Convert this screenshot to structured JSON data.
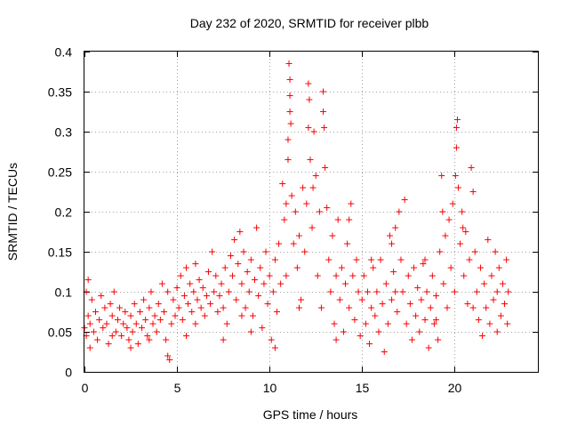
{
  "chart_data": {
    "type": "scatter",
    "title": "Day 232 of 2020, SRMTID for receiver plbb",
    "xlabel": "GPS time / hours",
    "ylabel": "SRMTID / TECUs",
    "xlim": [
      0,
      24.5
    ],
    "ylim": [
      0,
      0.4
    ],
    "x_ticks": [
      0,
      5,
      10,
      15,
      20
    ],
    "x_tick_labels": [
      "0",
      "5",
      "10",
      "15",
      "20"
    ],
    "y_ticks": [
      0,
      0.05,
      0.1,
      0.15,
      0.2,
      0.25,
      0.3,
      0.35,
      0.4
    ],
    "y_tick_labels": [
      "0",
      "0.05",
      "0.1",
      "0.15",
      "0.2",
      "0.25",
      "0.3",
      "0.35",
      "0.4"
    ],
    "grid": true,
    "marker": "+",
    "color": "#ff0000",
    "series": [
      {
        "name": "SRMTID",
        "points": [
          [
            0.0,
            0.055
          ],
          [
            0.1,
            0.1
          ],
          [
            0.1,
            0.045
          ],
          [
            0.2,
            0.115
          ],
          [
            0.2,
            0.07
          ],
          [
            0.3,
            0.06
          ],
          [
            0.4,
            0.09
          ],
          [
            0.5,
            0.05
          ],
          [
            0.6,
            0.075
          ],
          [
            0.7,
            0.04
          ],
          [
            0.8,
            0.065
          ],
          [
            0.9,
            0.095
          ],
          [
            1.0,
            0.055
          ],
          [
            1.1,
            0.08
          ],
          [
            1.2,
            0.06
          ],
          [
            1.3,
            0.035
          ],
          [
            1.4,
            0.085
          ],
          [
            1.5,
            0.07
          ],
          [
            1.6,
            0.1
          ],
          [
            1.7,
            0.05
          ],
          [
            1.8,
            0.065
          ],
          [
            1.9,
            0.08
          ],
          [
            2.0,
            0.045
          ],
          [
            2.1,
            0.06
          ],
          [
            2.2,
            0.075
          ],
          [
            2.3,
            0.055
          ],
          [
            2.4,
            0.04
          ],
          [
            2.5,
            0.07
          ],
          [
            2.6,
            0.05
          ],
          [
            2.7,
            0.085
          ],
          [
            2.8,
            0.06
          ],
          [
            2.9,
            0.035
          ],
          [
            3.0,
            0.075
          ],
          [
            3.1,
            0.055
          ],
          [
            3.2,
            0.09
          ],
          [
            3.3,
            0.065
          ],
          [
            3.4,
            0.045
          ],
          [
            3.5,
            0.08
          ],
          [
            3.6,
            0.1
          ],
          [
            3.7,
            0.06
          ],
          [
            3.8,
            0.07
          ],
          [
            3.9,
            0.05
          ],
          [
            4.0,
            0.085
          ],
          [
            4.1,
            0.065
          ],
          [
            4.2,
            0.11
          ],
          [
            4.3,
            0.075
          ],
          [
            4.4,
            0.04
          ],
          [
            4.5,
            0.02
          ],
          [
            4.6,
            0.015
          ],
          [
            4.7,
            0.06
          ],
          [
            4.8,
            0.09
          ],
          [
            4.9,
            0.07
          ],
          [
            5.0,
            0.105
          ],
          [
            5.1,
            0.08
          ],
          [
            5.2,
            0.12
          ],
          [
            5.3,
            0.065
          ],
          [
            5.4,
            0.095
          ],
          [
            5.5,
            0.13
          ],
          [
            5.6,
            0.085
          ],
          [
            5.7,
            0.11
          ],
          [
            5.8,
            0.075
          ],
          [
            5.9,
            0.1
          ],
          [
            6.0,
            0.135
          ],
          [
            6.1,
            0.09
          ],
          [
            6.2,
            0.115
          ],
          [
            6.3,
            0.08
          ],
          [
            6.4,
            0.105
          ],
          [
            6.5,
            0.07
          ],
          [
            6.6,
            0.095
          ],
          [
            6.7,
            0.125
          ],
          [
            6.8,
            0.085
          ],
          [
            6.9,
            0.15
          ],
          [
            7.0,
            0.1
          ],
          [
            7.1,
            0.12
          ],
          [
            7.2,
            0.075
          ],
          [
            7.3,
            0.095
          ],
          [
            7.4,
            0.11
          ],
          [
            7.5,
            0.08
          ],
          [
            7.6,
            0.13
          ],
          [
            7.7,
            0.06
          ],
          [
            7.8,
            0.1
          ],
          [
            7.9,
            0.145
          ],
          [
            8.0,
            0.12
          ],
          [
            8.1,
            0.165
          ],
          [
            8.2,
            0.09
          ],
          [
            8.3,
            0.135
          ],
          [
            8.4,
            0.175
          ],
          [
            8.5,
            0.11
          ],
          [
            8.6,
            0.15
          ],
          [
            8.7,
            0.08
          ],
          [
            8.8,
            0.125
          ],
          [
            8.9,
            0.1
          ],
          [
            9.0,
            0.14
          ],
          [
            9.1,
            0.07
          ],
          [
            9.2,
            0.115
          ],
          [
            9.3,
            0.18
          ],
          [
            9.4,
            0.095
          ],
          [
            9.5,
            0.13
          ],
          [
            9.6,
            0.055
          ],
          [
            9.7,
            0.11
          ],
          [
            9.8,
            0.15
          ],
          [
            9.9,
            0.085
          ],
          [
            10.0,
            0.12
          ],
          [
            10.1,
            0.04
          ],
          [
            10.2,
            0.1
          ],
          [
            10.3,
            0.14
          ],
          [
            10.4,
            0.075
          ],
          [
            10.5,
            0.16
          ],
          [
            10.6,
            0.11
          ],
          [
            10.7,
            0.235
          ],
          [
            10.8,
            0.19
          ],
          [
            10.9,
            0.12
          ],
          [
            11.0,
            0.265
          ],
          [
            11.0,
            0.29
          ],
          [
            11.05,
            0.385
          ],
          [
            11.1,
            0.365
          ],
          [
            11.1,
            0.345
          ],
          [
            11.1,
            0.325
          ],
          [
            11.15,
            0.31
          ],
          [
            11.2,
            0.22
          ],
          [
            11.3,
            0.16
          ],
          [
            11.4,
            0.2
          ],
          [
            11.5,
            0.13
          ],
          [
            11.6,
            0.17
          ],
          [
            11.7,
            0.09
          ],
          [
            11.8,
            0.23
          ],
          [
            11.9,
            0.15
          ],
          [
            12.0,
            0.21
          ],
          [
            12.1,
            0.36
          ],
          [
            12.15,
            0.34
          ],
          [
            12.1,
            0.305
          ],
          [
            12.2,
            0.265
          ],
          [
            12.3,
            0.18
          ],
          [
            12.4,
            0.3
          ],
          [
            12.5,
            0.245
          ],
          [
            12.6,
            0.12
          ],
          [
            12.7,
            0.2
          ],
          [
            12.8,
            0.08
          ],
          [
            12.9,
            0.35
          ],
          [
            12.9,
            0.325
          ],
          [
            12.95,
            0.305
          ],
          [
            13.0,
            0.255
          ],
          [
            13.1,
            0.205
          ],
          [
            13.2,
            0.14
          ],
          [
            13.3,
            0.1
          ],
          [
            13.4,
            0.17
          ],
          [
            13.5,
            0.06
          ],
          [
            13.6,
            0.12
          ],
          [
            13.7,
            0.19
          ],
          [
            13.8,
            0.09
          ],
          [
            13.9,
            0.13
          ],
          [
            14.0,
            0.05
          ],
          [
            14.1,
            0.11
          ],
          [
            14.2,
            0.16
          ],
          [
            14.3,
            0.08
          ],
          [
            14.4,
            0.21
          ],
          [
            14.5,
            0.12
          ],
          [
            14.6,
            0.065
          ],
          [
            14.7,
            0.14
          ],
          [
            14.8,
            0.1
          ],
          [
            14.9,
            0.045
          ],
          [
            15.0,
            0.09
          ],
          [
            15.1,
            0.12
          ],
          [
            15.2,
            0.06
          ],
          [
            15.3,
            0.1
          ],
          [
            15.4,
            0.035
          ],
          [
            15.5,
            0.08
          ],
          [
            15.6,
            0.13
          ],
          [
            15.7,
            0.07
          ],
          [
            15.8,
            0.1
          ],
          [
            15.9,
            0.05
          ],
          [
            16.0,
            0.14
          ],
          [
            16.1,
            0.085
          ],
          [
            16.2,
            0.025
          ],
          [
            16.3,
            0.11
          ],
          [
            16.4,
            0.06
          ],
          [
            16.5,
            0.17
          ],
          [
            16.6,
            0.09
          ],
          [
            16.7,
            0.125
          ],
          [
            16.8,
            0.18
          ],
          [
            16.9,
            0.075
          ],
          [
            17.0,
            0.2
          ],
          [
            17.1,
            0.14
          ],
          [
            17.2,
            0.1
          ],
          [
            17.3,
            0.215
          ],
          [
            17.4,
            0.06
          ],
          [
            17.5,
            0.12
          ],
          [
            17.6,
            0.085
          ],
          [
            17.7,
            0.04
          ],
          [
            17.8,
            0.13
          ],
          [
            17.9,
            0.07
          ],
          [
            18.0,
            0.105
          ],
          [
            18.1,
            0.05
          ],
          [
            18.2,
            0.09
          ],
          [
            18.3,
            0.135
          ],
          [
            18.4,
            0.065
          ],
          [
            18.5,
            0.1
          ],
          [
            18.6,
            0.03
          ],
          [
            18.7,
            0.08
          ],
          [
            18.8,
            0.12
          ],
          [
            18.9,
            0.06
          ],
          [
            19.0,
            0.095
          ],
          [
            19.1,
            0.04
          ],
          [
            19.2,
            0.15
          ],
          [
            19.3,
            0.245
          ],
          [
            19.35,
            0.2
          ],
          [
            19.4,
            0.11
          ],
          [
            19.5,
            0.17
          ],
          [
            19.6,
            0.08
          ],
          [
            19.7,
            0.19
          ],
          [
            19.8,
            0.13
          ],
          [
            19.9,
            0.21
          ],
          [
            20.0,
            0.1
          ],
          [
            20.05,
            0.245
          ],
          [
            20.1,
            0.28
          ],
          [
            20.1,
            0.305
          ],
          [
            20.15,
            0.315
          ],
          [
            20.2,
            0.23
          ],
          [
            20.3,
            0.16
          ],
          [
            20.4,
            0.2
          ],
          [
            20.5,
            0.12
          ],
          [
            20.6,
            0.175
          ],
          [
            20.7,
            0.085
          ],
          [
            20.8,
            0.14
          ],
          [
            20.9,
            0.255
          ],
          [
            21.0,
            0.225
          ],
          [
            21.1,
            0.15
          ],
          [
            21.2,
            0.1
          ],
          [
            21.3,
            0.065
          ],
          [
            21.4,
            0.13
          ],
          [
            21.5,
            0.045
          ],
          [
            21.6,
            0.11
          ],
          [
            21.7,
            0.08
          ],
          [
            21.8,
            0.165
          ],
          [
            21.9,
            0.06
          ],
          [
            22.0,
            0.12
          ],
          [
            22.1,
            0.09
          ],
          [
            22.2,
            0.15
          ],
          [
            22.3,
            0.05
          ],
          [
            22.4,
            0.13
          ],
          [
            22.5,
            0.07
          ],
          [
            22.6,
            0.11
          ],
          [
            22.7,
            0.085
          ],
          [
            22.8,
            0.14
          ],
          [
            22.85,
            0.06
          ],
          [
            22.9,
            0.1
          ],
          [
            0.3,
            0.03
          ],
          [
            1.5,
            0.045
          ],
          [
            2.5,
            0.03
          ],
          [
            3.5,
            0.04
          ],
          [
            4.5,
            0.1
          ],
          [
            6.0,
            0.06
          ],
          [
            7.5,
            0.04
          ],
          [
            9.0,
            0.05
          ],
          [
            10.3,
            0.03
          ],
          [
            11.6,
            0.08
          ],
          [
            13.6,
            0.04
          ],
          [
            15.5,
            0.14
          ],
          [
            16.8,
            0.1
          ],
          [
            18.4,
            0.14
          ],
          [
            19.0,
            0.065
          ],
          [
            21.0,
            0.08
          ],
          [
            22.3,
            0.1
          ],
          [
            12.35,
            0.23
          ],
          [
            10.9,
            0.21
          ],
          [
            14.3,
            0.19
          ],
          [
            16.6,
            0.16
          ],
          [
            20.45,
            0.18
          ],
          [
            8.5,
            0.07
          ],
          [
            5.5,
            0.045
          ]
        ]
      }
    ]
  }
}
